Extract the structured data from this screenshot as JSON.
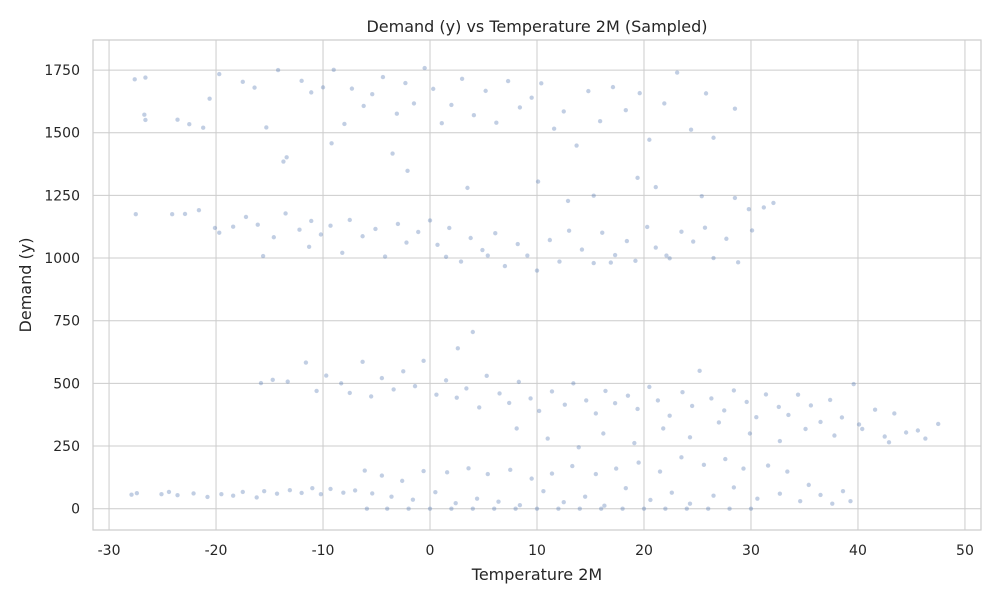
{
  "chart_data": {
    "type": "scatter",
    "title": "Demand (y) vs Temperature 2M (Sampled)",
    "xlabel": "Temperature 2M",
    "ylabel": "Demand (y)",
    "xlim": [
      -31.5,
      51.5
    ],
    "ylim": [
      -85,
      1870
    ],
    "xticks": [
      -30,
      -20,
      -10,
      0,
      10,
      20,
      30,
      40,
      50
    ],
    "yticks": [
      0,
      250,
      500,
      750,
      1000,
      1250,
      1500,
      1750
    ],
    "grid": true,
    "point_color": "#4C72B0",
    "point_opacity": 0.35,
    "series": [
      {
        "points": [
          [
            -27.6,
            1713
          ],
          [
            -26.6,
            1720
          ],
          [
            -26.7,
            1572
          ],
          [
            -26.6,
            1551
          ],
          [
            -23.6,
            1552
          ],
          [
            -22.5,
            1534
          ],
          [
            -21.2,
            1520
          ],
          [
            -20.6,
            1636
          ],
          [
            -19.7,
            1734
          ],
          [
            -17.5,
            1703
          ],
          [
            -16.4,
            1680
          ],
          [
            -15.3,
            1521
          ],
          [
            -14.2,
            1750
          ],
          [
            -13.4,
            1402
          ],
          [
            -12.0,
            1707
          ],
          [
            -11.1,
            1661
          ],
          [
            -10.0,
            1681
          ],
          [
            -9.0,
            1751
          ],
          [
            -8.0,
            1535
          ],
          [
            -7.3,
            1676
          ],
          [
            -6.2,
            1607
          ],
          [
            -5.4,
            1654
          ],
          [
            -4.4,
            1722
          ],
          [
            -3.1,
            1576
          ],
          [
            -2.3,
            1698
          ],
          [
            -1.5,
            1617
          ],
          [
            -0.5,
            1758
          ],
          [
            0.3,
            1675
          ],
          [
            1.1,
            1538
          ],
          [
            2.0,
            1611
          ],
          [
            3.0,
            1715
          ],
          [
            4.1,
            1570
          ],
          [
            5.2,
            1667
          ],
          [
            6.2,
            1540
          ],
          [
            7.3,
            1706
          ],
          [
            8.4,
            1601
          ],
          [
            9.5,
            1640
          ],
          [
            10.4,
            1697
          ],
          [
            11.6,
            1516
          ],
          [
            12.5,
            1585
          ],
          [
            13.7,
            1449
          ],
          [
            14.8,
            1666
          ],
          [
            15.9,
            1546
          ],
          [
            17.1,
            1682
          ],
          [
            18.3,
            1590
          ],
          [
            19.6,
            1658
          ],
          [
            20.5,
            1472
          ],
          [
            21.9,
            1617
          ],
          [
            23.1,
            1740
          ],
          [
            24.4,
            1512
          ],
          [
            25.8,
            1657
          ],
          [
            26.5,
            1480
          ],
          [
            28.5,
            1596
          ],
          [
            -13.7,
            1385
          ],
          [
            -9.2,
            1458
          ],
          [
            -3.5,
            1417
          ],
          [
            -2.1,
            1348
          ],
          [
            3.5,
            1280
          ],
          [
            10.1,
            1305
          ],
          [
            12.9,
            1228
          ],
          [
            15.3,
            1249
          ],
          [
            19.4,
            1320
          ],
          [
            21.1,
            1283
          ],
          [
            25.4,
            1247
          ],
          [
            28.5,
            1240
          ]
        ]
      },
      {
        "points": [
          [
            -27.5,
            1175
          ],
          [
            -24.1,
            1175
          ],
          [
            -22.9,
            1176
          ],
          [
            -21.6,
            1191
          ],
          [
            -20.1,
            1120
          ],
          [
            -19.7,
            1101
          ],
          [
            -18.4,
            1125
          ],
          [
            -17.2,
            1164
          ],
          [
            -16.1,
            1133
          ],
          [
            -14.6,
            1083
          ],
          [
            -13.5,
            1178
          ],
          [
            -12.2,
            1113
          ],
          [
            -11.1,
            1148
          ],
          [
            -10.2,
            1094
          ],
          [
            -9.3,
            1129
          ],
          [
            -8.2,
            1021
          ],
          [
            -7.5,
            1152
          ],
          [
            -6.3,
            1087
          ],
          [
            -5.1,
            1116
          ],
          [
            -4.2,
            1006
          ],
          [
            -3.0,
            1136
          ],
          [
            -2.2,
            1062
          ],
          [
            -1.1,
            1104
          ],
          [
            0.0,
            1150
          ],
          [
            0.7,
            1053
          ],
          [
            1.8,
            1120
          ],
          [
            2.9,
            986
          ],
          [
            3.8,
            1080
          ],
          [
            4.9,
            1032
          ],
          [
            6.1,
            1099
          ],
          [
            7.0,
            968
          ],
          [
            8.2,
            1056
          ],
          [
            9.1,
            1010
          ],
          [
            10.0,
            950
          ],
          [
            11.2,
            1072
          ],
          [
            12.1,
            986
          ],
          [
            13.0,
            1109
          ],
          [
            14.2,
            1034
          ],
          [
            15.3,
            980
          ],
          [
            16.1,
            1101
          ],
          [
            17.3,
            1012
          ],
          [
            18.4,
            1068
          ],
          [
            19.2,
            989
          ],
          [
            20.3,
            1124
          ],
          [
            21.1,
            1042
          ],
          [
            22.4,
            999
          ],
          [
            23.5,
            1105
          ],
          [
            24.6,
            1066
          ],
          [
            25.7,
            1121
          ],
          [
            26.5,
            1000
          ],
          [
            27.7,
            1077
          ],
          [
            28.8,
            983
          ],
          [
            30.1,
            1110
          ],
          [
            31.2,
            1202
          ],
          [
            32.1,
            1220
          ],
          [
            29.8,
            1195
          ],
          [
            -15.6,
            1008
          ],
          [
            -11.3,
            1045
          ],
          [
            1.5,
            1005
          ],
          [
            5.4,
            1010
          ],
          [
            16.9,
            982
          ],
          [
            22.1,
            1010
          ]
        ]
      },
      {
        "points": [
          [
            -15.8,
            501
          ],
          [
            -14.7,
            514
          ],
          [
            -13.3,
            507
          ],
          [
            -11.6,
            583
          ],
          [
            -10.6,
            470
          ],
          [
            -9.7,
            531
          ],
          [
            -8.3,
            500
          ],
          [
            -7.5,
            462
          ],
          [
            -6.3,
            586
          ],
          [
            -5.5,
            448
          ],
          [
            -4.5,
            521
          ],
          [
            -3.4,
            476
          ],
          [
            -2.5,
            548
          ],
          [
            -1.4,
            489
          ],
          [
            -0.6,
            590
          ],
          [
            0.6,
            455
          ],
          [
            1.5,
            512
          ],
          [
            2.5,
            443
          ],
          [
            2.6,
            640
          ],
          [
            3.4,
            480
          ],
          [
            4.0,
            705
          ],
          [
            4.6,
            404
          ],
          [
            5.3,
            530
          ],
          [
            6.5,
            460
          ],
          [
            7.4,
            422
          ],
          [
            8.3,
            506
          ],
          [
            9.4,
            440
          ],
          [
            10.2,
            390
          ],
          [
            11.4,
            468
          ],
          [
            12.6,
            415
          ],
          [
            13.4,
            500
          ],
          [
            14.6,
            432
          ],
          [
            15.5,
            380
          ],
          [
            16.4,
            470
          ],
          [
            17.3,
            421
          ],
          [
            18.5,
            451
          ],
          [
            19.4,
            398
          ],
          [
            20.5,
            486
          ],
          [
            21.3,
            432
          ],
          [
            22.4,
            371
          ],
          [
            23.6,
            465
          ],
          [
            24.5,
            410
          ],
          [
            25.2,
            550
          ],
          [
            26.3,
            440
          ],
          [
            27.5,
            392
          ],
          [
            28.4,
            472
          ],
          [
            29.6,
            426
          ],
          [
            30.5,
            365
          ],
          [
            31.4,
            456
          ],
          [
            32.6,
            406
          ],
          [
            33.5,
            374
          ],
          [
            34.4,
            455
          ],
          [
            35.6,
            412
          ],
          [
            36.5,
            346
          ],
          [
            37.4,
            434
          ],
          [
            38.5,
            364
          ],
          [
            39.6,
            497
          ],
          [
            40.4,
            318
          ],
          [
            41.6,
            395
          ],
          [
            42.5,
            288
          ],
          [
            43.4,
            380
          ],
          [
            44.5,
            304
          ],
          [
            45.6,
            312
          ],
          [
            46.3,
            280
          ],
          [
            47.5,
            338
          ],
          [
            8.1,
            320
          ],
          [
            11.0,
            280
          ],
          [
            13.9,
            245
          ],
          [
            16.2,
            300
          ],
          [
            19.1,
            262
          ],
          [
            21.8,
            320
          ],
          [
            24.3,
            285
          ],
          [
            27.0,
            344
          ],
          [
            29.9,
            300
          ],
          [
            32.7,
            270
          ],
          [
            35.1,
            318
          ],
          [
            37.8,
            292
          ],
          [
            40.1,
            336
          ],
          [
            42.9,
            265
          ]
        ]
      },
      {
        "points": [
          [
            -27.9,
            56
          ],
          [
            -27.4,
            62
          ],
          [
            -25.1,
            58
          ],
          [
            -24.4,
            67
          ],
          [
            -23.6,
            54
          ],
          [
            -22.1,
            61
          ],
          [
            -20.8,
            47
          ],
          [
            -19.5,
            58
          ],
          [
            -18.4,
            52
          ],
          [
            -17.5,
            67
          ],
          [
            -16.2,
            45
          ],
          [
            -15.5,
            70
          ],
          [
            -14.3,
            60
          ],
          [
            -13.1,
            74
          ],
          [
            -12.0,
            63
          ],
          [
            -11.0,
            82
          ],
          [
            -10.2,
            58
          ],
          [
            -9.3,
            79
          ],
          [
            -8.1,
            64
          ],
          [
            -7.0,
            73
          ],
          [
            -6.1,
            152
          ],
          [
            -5.4,
            61
          ],
          [
            -4.5,
            132
          ],
          [
            -3.6,
            48
          ],
          [
            -2.6,
            111
          ],
          [
            -1.6,
            36
          ],
          [
            -0.6,
            150
          ],
          [
            0.5,
            66
          ],
          [
            1.6,
            145
          ],
          [
            2.4,
            22
          ],
          [
            3.6,
            161
          ],
          [
            4.4,
            40
          ],
          [
            5.4,
            138
          ],
          [
            6.4,
            28
          ],
          [
            7.5,
            155
          ],
          [
            8.4,
            14
          ],
          [
            9.5,
            120
          ],
          [
            10.6,
            70
          ],
          [
            11.4,
            140
          ],
          [
            12.5,
            26
          ],
          [
            13.3,
            170
          ],
          [
            14.5,
            48
          ],
          [
            15.5,
            138
          ],
          [
            16.3,
            12
          ],
          [
            17.4,
            160
          ],
          [
            18.3,
            82
          ],
          [
            19.5,
            184
          ],
          [
            20.6,
            35
          ],
          [
            21.5,
            148
          ],
          [
            22.6,
            64
          ],
          [
            23.5,
            205
          ],
          [
            24.3,
            20
          ],
          [
            25.6,
            175
          ],
          [
            26.5,
            52
          ],
          [
            27.6,
            198
          ],
          [
            28.4,
            85
          ],
          [
            29.3,
            160
          ],
          [
            30.6,
            40
          ],
          [
            31.6,
            172
          ],
          [
            32.7,
            60
          ],
          [
            33.4,
            148
          ],
          [
            34.6,
            30
          ],
          [
            35.4,
            95
          ],
          [
            36.5,
            55
          ],
          [
            37.6,
            20
          ],
          [
            38.6,
            70
          ],
          [
            39.3,
            30
          ],
          [
            -5.9,
            0
          ],
          [
            -4.0,
            0
          ],
          [
            -2.0,
            0
          ],
          [
            0.0,
            0
          ],
          [
            2.0,
            0
          ],
          [
            4.0,
            0
          ],
          [
            6.0,
            0
          ],
          [
            8.0,
            0
          ],
          [
            10.0,
            0
          ],
          [
            12.0,
            0
          ],
          [
            14.0,
            0
          ],
          [
            16.0,
            0
          ],
          [
            18.0,
            0
          ],
          [
            20.0,
            0
          ],
          [
            22.0,
            0
          ],
          [
            24.0,
            0
          ],
          [
            26.0,
            0
          ],
          [
            28.0,
            0
          ],
          [
            30.0,
            0
          ]
        ]
      }
    ]
  }
}
